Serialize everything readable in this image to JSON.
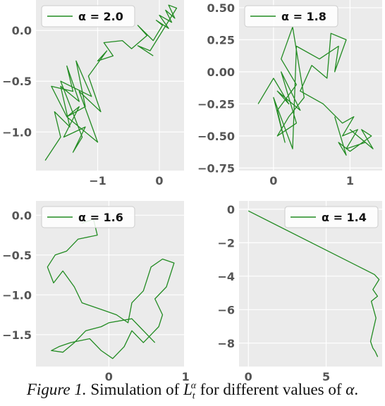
{
  "chart_data": [
    {
      "type": "line",
      "legend": "α = 2.0",
      "line_color": "#228B22",
      "legend_placement": "top-left",
      "grid": true,
      "xlim": [
        -2.0,
        0.4
      ],
      "ylim": [
        -1.38,
        0.3
      ],
      "x_ticks": [
        -1,
        0
      ],
      "x_tick_labels": [
        "−1",
        "0"
      ],
      "y_ticks": [
        0.0,
        -0.5,
        -1.0
      ],
      "y_tick_labels": [
        "0.0",
        "−0.5",
        "−1.0"
      ],
      "x": [
        -1.85,
        -1.6,
        -1.7,
        -1.45,
        -1.6,
        -1.3,
        -1.5,
        -1.4,
        -1.75,
        -1.5,
        -1.3,
        -1.55,
        -1.2,
        -1.4,
        -1.25,
        -1.6,
        -1.1,
        -1.35,
        -1.2,
        -1.5,
        -1.0,
        -1.3,
        -0.95,
        -1.15,
        -0.85,
        -1.0,
        -0.75,
        -0.9,
        -0.6,
        -0.45,
        -0.2,
        -0.35,
        -0.1,
        0.05,
        -0.05,
        0.15,
        0.0,
        0.2,
        0.1,
        0.25,
        0.15,
        0.28,
        -0.15,
        -0.35,
        -0.1
      ],
      "y": [
        -1.28,
        -1.05,
        -0.8,
        -0.95,
        -0.55,
        -0.7,
        -0.35,
        -0.6,
        -0.55,
        -0.85,
        -0.75,
        -1.05,
        -0.95,
        -1.2,
        -1.05,
        -0.5,
        -0.65,
        -0.3,
        -0.75,
        -0.85,
        -1.1,
        -0.6,
        -0.8,
        -0.45,
        -0.2,
        -0.3,
        -0.25,
        -0.12,
        -0.1,
        -0.18,
        -0.05,
        0.05,
        -0.1,
        0.05,
        0.1,
        0.02,
        0.15,
        0.08,
        0.2,
        0.12,
        0.25,
        0.22,
        -0.2,
        -0.15,
        -0.25
      ]
    },
    {
      "type": "line",
      "legend": "α = 1.8",
      "line_color": "#228B22",
      "legend_placement": "top-left",
      "grid": true,
      "xlim": [
        -0.45,
        1.42
      ],
      "ylim": [
        -0.77,
        0.56
      ],
      "x_ticks": [
        0,
        1
      ],
      "x_tick_labels": [
        "0",
        "1"
      ],
      "y_ticks": [
        0.5,
        0.25,
        0.0,
        -0.25,
        -0.5,
        -0.75
      ],
      "y_tick_labels": [
        "0.50",
        "0.25",
        "0.00",
        "−0.25",
        "−0.50",
        "−0.75"
      ],
      "x": [
        -0.2,
        0.0,
        0.2,
        0.05,
        0.35,
        0.1,
        0.3,
        0.05,
        0.2,
        0.4,
        0.25,
        0.1,
        0.3,
        0.05,
        0.15,
        0.0,
        0.25,
        0.3,
        0.6,
        0.85,
        0.8,
        0.95,
        0.75,
        0.7,
        0.5,
        0.35,
        0.65,
        0.9,
        1.05,
        0.9,
        1.1,
        0.95,
        1.2,
        1.0,
        1.3,
        1.15,
        1.28,
        1.0,
        0.85,
        0.95,
        0.8
      ],
      "y": [
        -0.25,
        -0.05,
        -0.25,
        -0.15,
        -0.3,
        0.0,
        -0.4,
        -0.5,
        -0.35,
        -0.2,
        0.35,
        0.1,
        -0.1,
        -0.3,
        -0.55,
        -0.2,
        -0.6,
        0.2,
        0.1,
        0.2,
        0.0,
        0.25,
        0.3,
        -0.05,
        0.05,
        -0.15,
        -0.25,
        -0.4,
        -0.35,
        -0.5,
        -0.45,
        -0.6,
        -0.55,
        -0.45,
        -0.6,
        -0.45,
        -0.5,
        -0.62,
        -0.55,
        -0.65,
        -0.35
      ]
    },
    {
      "type": "line",
      "legend": "α = 1.6",
      "line_color": "#228B22",
      "legend_placement": "top-left",
      "grid": true,
      "xlim": [
        -0.95,
        0.98
      ],
      "ylim": [
        -1.9,
        0.18
      ],
      "x_ticks": [
        0,
        1
      ],
      "x_tick_labels": [
        "0",
        "1"
      ],
      "y_ticks": [
        0.0,
        -0.5,
        -1.0,
        -1.5
      ],
      "y_tick_labels": [
        "0.0",
        "−0.5",
        "−1.0",
        "−1.5"
      ],
      "x": [
        -0.35,
        -0.2,
        -0.15,
        -0.4,
        -0.55,
        -0.7,
        -0.8,
        -0.72,
        -0.6,
        -0.45,
        -0.35,
        -0.2,
        -0.05,
        0.1,
        0.25,
        0.3,
        0.45,
        0.5,
        0.55,
        0.7,
        0.85,
        0.75,
        0.6,
        0.7,
        0.65,
        0.55,
        0.45,
        0.3,
        0.2,
        0.05,
        -0.1,
        -0.25,
        -0.5,
        -0.65,
        -0.75,
        -0.6,
        -0.45,
        -0.3,
        -0.1,
        0.0,
        0.3,
        0.4,
        0.5,
        0.6
      ],
      "y": [
        -0.1,
        -0.05,
        -0.25,
        -0.3,
        -0.45,
        -0.5,
        -0.65,
        -0.85,
        -0.7,
        -0.9,
        -1.1,
        -1.15,
        -1.2,
        -1.25,
        -1.35,
        -1.1,
        -0.95,
        -0.8,
        -0.65,
        -0.55,
        -0.6,
        -0.9,
        -1.05,
        -1.25,
        -1.4,
        -1.5,
        -1.6,
        -1.45,
        -1.65,
        -1.8,
        -1.7,
        -1.55,
        -1.6,
        -1.65,
        -1.7,
        -1.72,
        -1.6,
        -1.45,
        -1.4,
        -1.35,
        -1.3,
        -1.4,
        -1.5,
        -1.6
      ]
    },
    {
      "type": "line",
      "legend": "α = 1.4",
      "line_color": "#228B22",
      "legend_placement": "top-right",
      "grid": true,
      "xlim": [
        -0.6,
        8.6
      ],
      "ylim": [
        -9.4,
        0.5
      ],
      "x_ticks": [
        0,
        5
      ],
      "x_tick_labels": [
        "0",
        "5"
      ],
      "y_ticks": [
        0,
        -2,
        -4,
        -6,
        -8
      ],
      "y_tick_labels": [
        "0",
        "−2",
        "−4",
        "−6",
        "−8"
      ],
      "x": [
        0.0,
        8.1,
        8.4,
        8.0,
        8.3,
        7.9,
        8.2,
        7.85,
        8.0,
        8.15,
        8.3,
        8.2
      ],
      "y": [
        -0.1,
        -3.9,
        -4.2,
        -4.8,
        -5.2,
        -5.5,
        -6.5,
        -7.9,
        -8.3,
        -8.5,
        -8.8,
        -8.6
      ]
    }
  ],
  "caption": {
    "prefix": "Figure 1.",
    "text_before": " Simulation of ",
    "symbol_main": "L",
    "symbol_sub": "t",
    "symbol_sup": "α",
    "text_after": " for different values of ",
    "alpha": "α",
    "end": "."
  }
}
